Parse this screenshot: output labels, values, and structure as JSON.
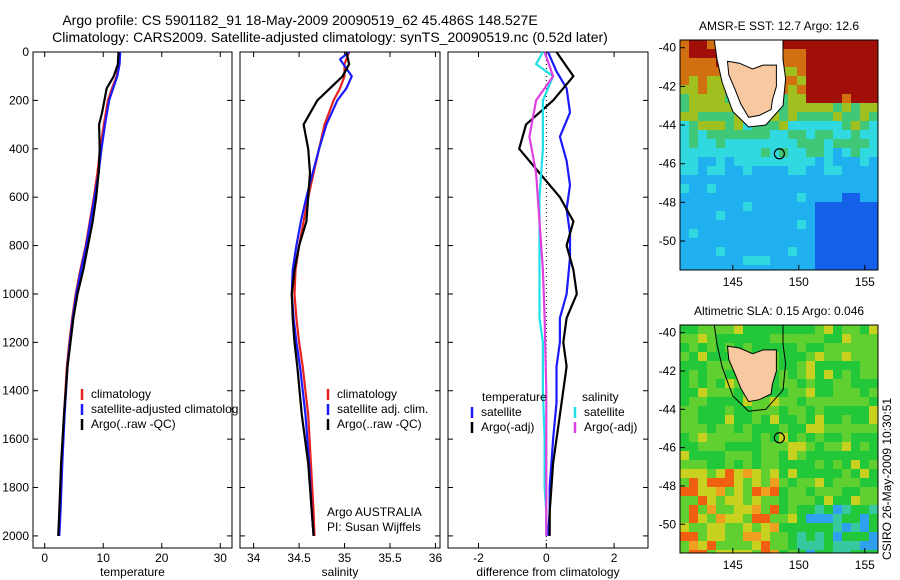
{
  "titles": {
    "line1": "Argo profile: CS 5901182_91 18-May-2009 20090519_62 45.486S 148.527E",
    "line2": "Climatology: CARS2009. Satellite-adjusted climatology: synTS_20090519.nc (0.52d later)"
  },
  "side_label": "CSIRO 26-May-2009 10:30:51",
  "colors": {
    "climatology": "#e8231f",
    "satellite": "#1a1aff",
    "argo": "#000000",
    "sat_salinity": "#1ee0e8",
    "argo_adj_sal": "#e040e0"
  },
  "chart_data": [
    {
      "type": "line",
      "xlabel": "temperature",
      "xlim": [
        -2,
        32
      ],
      "ylim": [
        0,
        2050
      ],
      "xticks": [
        0,
        10,
        20,
        30
      ],
      "yticks": [
        0,
        200,
        400,
        600,
        800,
        1000,
        1200,
        1400,
        1600,
        1800,
        2000
      ],
      "legend": [
        "climatology",
        "satellite-adjusted climatolog",
        "Argo(..raw -QC)"
      ],
      "series": [
        {
          "name": "climatology",
          "x": [
            12.8,
            12.7,
            12.3,
            11.5,
            10.8,
            10.1,
            9.5,
            9.0,
            8.4,
            7.7,
            7.0,
            6.1,
            5.3,
            4.7,
            4.2,
            3.8,
            3.3,
            2.9,
            2.6,
            2.4
          ],
          "y": [
            0,
            50,
            100,
            150,
            200,
            300,
            400,
            500,
            600,
            700,
            800,
            900,
            1000,
            1100,
            1200,
            1300,
            1500,
            1700,
            1900,
            2000
          ]
        },
        {
          "name": "satellite-adjusted climatolog",
          "x": [
            12.9,
            12.8,
            12.4,
            11.7,
            11.0,
            10.3,
            9.7,
            9.2,
            8.5,
            7.8,
            7.1,
            6.2,
            5.4,
            4.8,
            4.3,
            3.9,
            3.4,
            3.0,
            2.7,
            2.5
          ],
          "y": [
            0,
            50,
            100,
            150,
            200,
            300,
            400,
            500,
            600,
            700,
            800,
            900,
            1000,
            1100,
            1200,
            1300,
            1500,
            1700,
            1900,
            2000
          ]
        },
        {
          "name": "Argo(..raw -QC)",
          "x": [
            12.6,
            12.5,
            11.8,
            10.6,
            9.8,
            9.3,
            9.4,
            9.2,
            8.8,
            8.2,
            7.4,
            6.6,
            5.6,
            4.9,
            4.4,
            3.9,
            3.3,
            2.8,
            2.5,
            2.3
          ],
          "y": [
            0,
            50,
            100,
            150,
            250,
            300,
            400,
            500,
            600,
            700,
            800,
            900,
            1000,
            1100,
            1200,
            1300,
            1500,
            1700,
            1900,
            2000
          ]
        }
      ]
    },
    {
      "type": "line",
      "xlabel": "salinity",
      "xlim": [
        33.85,
        36.05
      ],
      "ylim": [
        0,
        2050
      ],
      "xticks": [
        34,
        34.5,
        35,
        35.5,
        36
      ],
      "legend": [
        "climatology",
        "satellite adj. clim.",
        "Argo(..raw -QC)"
      ],
      "annotation": [
        "Argo AUSTRALIA",
        "PI: Susan Wijffels"
      ],
      "series": [
        {
          "name": "climatology",
          "x": [
            35.05,
            35.0,
            35.0,
            34.95,
            34.88,
            34.78,
            34.72,
            34.66,
            34.6,
            34.55,
            34.5,
            34.46,
            34.45,
            34.47,
            34.5,
            34.54,
            34.6,
            34.63,
            34.66,
            34.67
          ],
          "y": [
            0,
            50,
            100,
            150,
            200,
            300,
            400,
            500,
            600,
            700,
            800,
            900,
            1000,
            1100,
            1200,
            1300,
            1500,
            1700,
            1900,
            2000
          ]
        },
        {
          "name": "satellite adj. clim.",
          "x": [
            35.05,
            34.95,
            35.08,
            35.02,
            34.92,
            34.8,
            34.72,
            34.65,
            34.58,
            34.52,
            34.47,
            34.43,
            34.42,
            34.44,
            34.47,
            34.51,
            34.57,
            34.61,
            34.64,
            34.66
          ],
          "y": [
            0,
            30,
            100,
            150,
            200,
            300,
            400,
            500,
            600,
            700,
            800,
            900,
            1000,
            1100,
            1200,
            1300,
            1500,
            1700,
            1900,
            2000
          ]
        },
        {
          "name": "Argo(..raw -QC)",
          "x": [
            35.02,
            35.05,
            34.98,
            34.7,
            34.55,
            34.6,
            34.62,
            34.6,
            34.58,
            34.5,
            34.45,
            34.42,
            34.43,
            34.45,
            34.48,
            34.53,
            34.6,
            34.64,
            34.66
          ],
          "y": [
            0,
            50,
            100,
            200,
            300,
            400,
            500,
            600,
            700,
            800,
            900,
            1000,
            1100,
            1200,
            1300,
            1500,
            1700,
            1900,
            2000
          ]
        }
      ]
    },
    {
      "type": "line",
      "xlabel": "difference from climatology",
      "xlim": [
        -2.9,
        3.0
      ],
      "ylim": [
        0,
        2050
      ],
      "xticks": [
        -2,
        0,
        2
      ],
      "legend_groups": [
        {
          "heading": "temperature",
          "items": [
            "satellite",
            "Argo(-adj)"
          ]
        },
        {
          "heading": "salinity",
          "items": [
            "satellite",
            "Argo(-adj)"
          ]
        }
      ],
      "series": [
        {
          "name": "satellite (temperature)",
          "x": [
            0.05,
            0.3,
            0.6,
            0.7,
            0.4,
            0.6,
            0.7,
            0.6,
            0.7,
            0.7,
            0.6,
            0.4,
            0.4,
            0.3,
            0.3,
            0.2,
            0.1,
            0.1,
            0.05
          ],
          "y": [
            0,
            80,
            150,
            250,
            350,
            450,
            550,
            650,
            750,
            850,
            1000,
            1100,
            1200,
            1300,
            1450,
            1600,
            1800,
            1900,
            2000
          ]
        },
        {
          "name": "Argo(-adj) (temperature)",
          "x": [
            0.3,
            0.8,
            0.2,
            -0.6,
            -0.8,
            -0.2,
            0.4,
            0.8,
            0.6,
            0.8,
            0.9,
            0.6,
            0.5,
            0.6,
            0.4,
            0.2,
            0.1,
            0.1
          ],
          "y": [
            0,
            100,
            200,
            300,
            400,
            500,
            600,
            700,
            800,
            900,
            1000,
            1100,
            1200,
            1300,
            1500,
            1700,
            1900,
            2000
          ]
        },
        {
          "name": "satellite (salinity)",
          "x": [
            -0.1,
            -0.3,
            0.2,
            -0.1,
            -0.1,
            -0.2,
            -0.2,
            -0.2,
            -0.2,
            -0.1,
            -0.1,
            -0.1,
            -0.05,
            -0.05,
            0.0,
            0.0
          ],
          "y": [
            0,
            50,
            100,
            200,
            400,
            600,
            800,
            1000,
            1100,
            1200,
            1300,
            1400,
            1600,
            1800,
            1900,
            2000
          ]
        },
        {
          "name": "Argo(-adj) (salinity)",
          "x": [
            -0.05,
            0.2,
            -0.3,
            -0.5,
            -0.3,
            -0.2,
            -0.1,
            -0.05,
            0.0,
            0.0,
            0.0
          ],
          "y": [
            0,
            100,
            200,
            350,
            500,
            700,
            900,
            1100,
            1400,
            1700,
            2000
          ]
        }
      ]
    },
    {
      "type": "heatmap",
      "title": "AMSR-E SST: 12.7 Argo: 12.6",
      "xticks": [
        145,
        150,
        155
      ],
      "yticks": [
        -40,
        -42,
        -44,
        -46,
        -48,
        -50
      ],
      "xlim": [
        141,
        156
      ],
      "ylim": [
        -51.5,
        -39.6
      ],
      "marker": {
        "lon": 148.527,
        "lat": -45.486
      }
    },
    {
      "type": "heatmap",
      "title": "Altimetric SLA: 0.15 Argo: 0.046",
      "xticks": [
        145,
        150,
        155
      ],
      "yticks": [
        -40,
        -42,
        -44,
        -46,
        -48,
        -50
      ],
      "xlim": [
        141,
        156
      ],
      "ylim": [
        -51.5,
        -39.6
      ],
      "marker": {
        "lon": 148.527,
        "lat": -45.486
      }
    }
  ]
}
